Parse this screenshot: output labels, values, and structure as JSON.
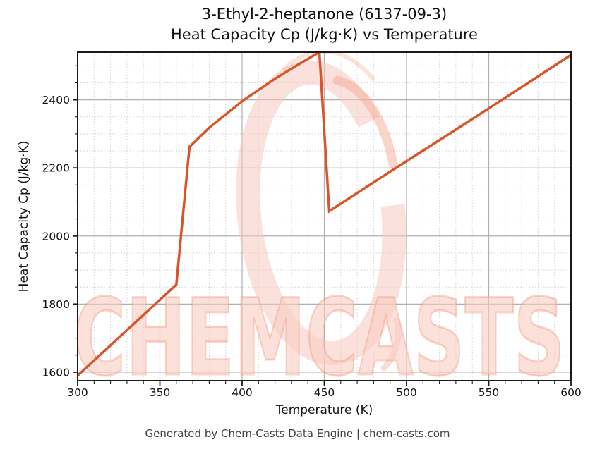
{
  "header": {
    "title_line1": "3-Ethyl-2-heptanone (6137-09-3)",
    "title_line2": "Heat Capacity Cp (J/kg·K) vs Temperature"
  },
  "watermark": {
    "text": "CHEMCASTS",
    "logo": "chemcasts-ring-logo"
  },
  "footer": {
    "text": "Generated by Chem-Casts Data Engine | chem-casts.com"
  },
  "colors": {
    "line": "#d9542b",
    "grid_major": "#b0b0b0",
    "grid_minor": "#cfcfcf",
    "axis": "#1a1a1a",
    "tick_label": "#111111",
    "title_text": "#111111",
    "footer_text": "#404040",
    "watermark_fill": "rgba(250,205,194,0.60)",
    "watermark_stroke": "rgba(240,150,126,0.40)",
    "ring_main": "rgba(247,200,189,0.55)",
    "ring_accent": "rgba(243,172,153,0.50)"
  },
  "chart_data": {
    "type": "line",
    "title": "3-Ethyl-2-heptanone (6137-09-3) — Heat Capacity Cp (J/kg·K) vs Temperature",
    "xlabel": "Temperature (K)",
    "ylabel": "Heat Capacity Cp (J/kg·K)",
    "xlim": [
      300,
      600
    ],
    "ylim": [
      1575,
      2540
    ],
    "x_ticks": [
      300,
      350,
      400,
      450,
      500,
      550,
      600
    ],
    "y_ticks": [
      1600,
      1800,
      2000,
      2200,
      2400
    ],
    "x_minor_step": 10,
    "y_minor_step": 50,
    "grid": true,
    "legend": null,
    "series": [
      {
        "name": "Heat Capacity Cp",
        "color": "#d9542b",
        "points": [
          [
            300,
            1590
          ],
          [
            360,
            1857
          ],
          [
            368,
            2262
          ],
          [
            380,
            2318
          ],
          [
            400,
            2396
          ],
          [
            420,
            2462
          ],
          [
            435,
            2506
          ],
          [
            447,
            2540
          ],
          [
            453,
            2073
          ],
          [
            475,
            2142
          ],
          [
            500,
            2220
          ],
          [
            525,
            2297
          ],
          [
            550,
            2375
          ],
          [
            575,
            2453
          ],
          [
            600,
            2532
          ]
        ]
      }
    ]
  }
}
